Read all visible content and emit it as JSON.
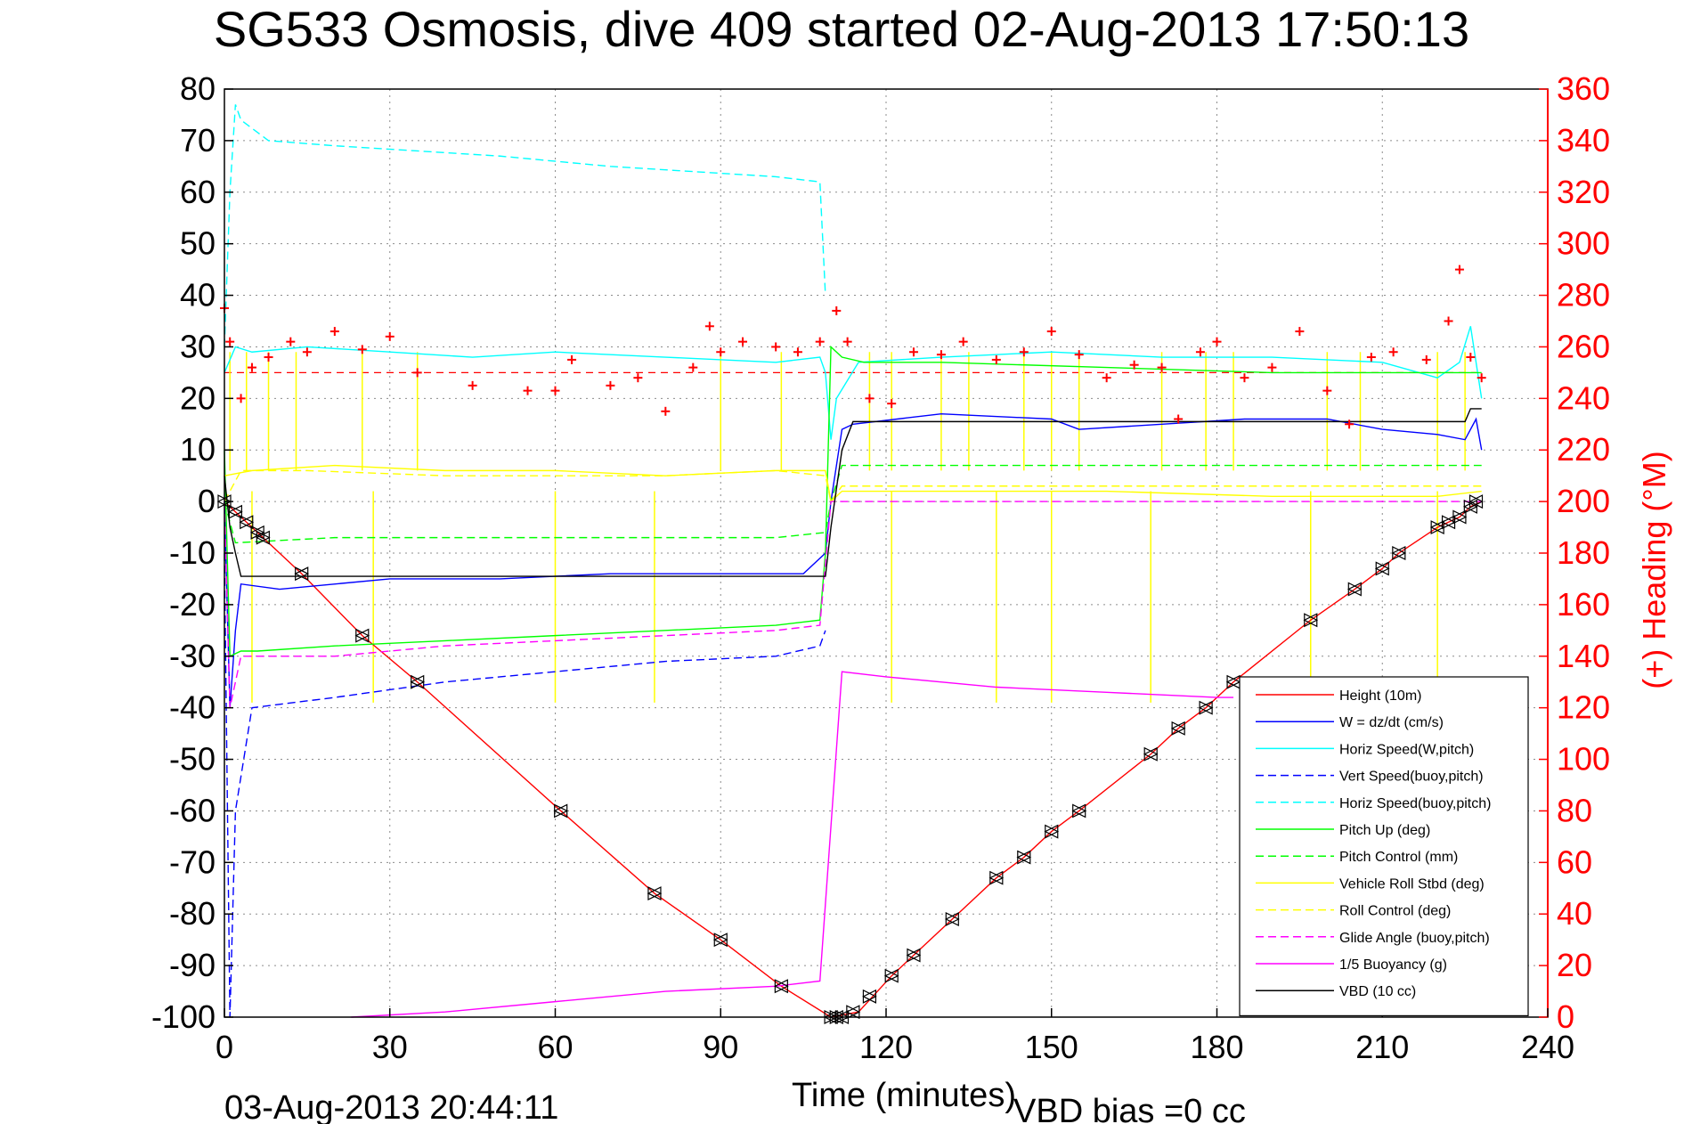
{
  "title": "SG533 Osmosis, dive 409 started 02-Aug-2013 17:50:13",
  "footer": {
    "timestamp": "03-Aug-2013 20:44:11",
    "vbd_bias": "VBD bias =0 cc"
  },
  "colors": {
    "red": "#ff0000",
    "blue": "#0000ff",
    "cyan": "#00ffff",
    "green": "#00ff00",
    "yellow": "#ffff00",
    "magenta": "#ff00ff",
    "black": "#000000"
  },
  "chart_data": {
    "type": "line",
    "title": "SG533 Osmosis, dive 409 started 02-Aug-2013 17:50:13",
    "xlabel": "Time (minutes)",
    "ylabel": "",
    "y2label": "(+) Heading (°M)",
    "xlim": [
      0,
      240
    ],
    "ylim": [
      -100,
      80
    ],
    "y2lim": [
      0,
      360
    ],
    "grid": true,
    "legend_position": "bottom-right",
    "x_ticks": [
      "0",
      "30",
      "60",
      "90",
      "120",
      "150",
      "180",
      "210",
      "240"
    ],
    "y_ticks": [
      "80",
      "70",
      "60",
      "50",
      "40",
      "30",
      "20",
      "10",
      "0",
      "-10",
      "-20",
      "-30",
      "-40",
      "-50",
      "-60",
      "-70",
      "-80",
      "-90",
      "-100"
    ],
    "y2_ticks": [
      "360",
      "340",
      "320",
      "300",
      "280",
      "260",
      "240",
      "220",
      "200",
      "180",
      "160",
      "140",
      "120",
      "100",
      "80",
      "60",
      "40",
      "20",
      "0"
    ],
    "series": [
      {
        "name": "Height (10m)",
        "color": "#ff0000",
        "style": "solid",
        "x": [
          0,
          3,
          7,
          14,
          25,
          35,
          61,
          78,
          90,
          101,
          110,
          115,
          121,
          125,
          132,
          140,
          145,
          150,
          155,
          168,
          173,
          178,
          183,
          197,
          205,
          210,
          213,
          220,
          222,
          224,
          226,
          228
        ],
        "y": [
          0,
          -3,
          -7,
          -14,
          -26,
          -35,
          -60,
          -76,
          -85,
          -94,
          -100,
          -99,
          -92,
          -88,
          -81,
          -73,
          -69,
          -64,
          -60,
          -49,
          -44,
          -40,
          -35,
          -23,
          -17,
          -13,
          -10,
          -5,
          -4,
          -3,
          -1,
          0
        ]
      },
      {
        "name": "W = dz/dt (cm/s)",
        "color": "#0000ff",
        "style": "solid",
        "x": [
          0,
          1,
          2,
          3,
          10,
          30,
          50,
          70,
          90,
          105,
          109,
          110,
          112,
          114,
          130,
          150,
          155,
          170,
          185,
          200,
          210,
          220,
          225,
          227,
          228
        ],
        "y": [
          0,
          -40,
          -25,
          -16,
          -17,
          -15,
          -15,
          -14,
          -14,
          -14,
          -10,
          0,
          14,
          15,
          17,
          16,
          14,
          15,
          16,
          16,
          14,
          13,
          12,
          16,
          10
        ]
      },
      {
        "name": "Horiz Speed(W,pitch)",
        "color": "#00ffff",
        "style": "solid",
        "x": [
          0,
          2,
          5,
          15,
          30,
          45,
          60,
          80,
          100,
          108,
          109,
          110,
          111,
          115,
          130,
          150,
          170,
          190,
          210,
          220,
          224,
          226,
          228
        ],
        "y": [
          25,
          30,
          29,
          30,
          29,
          28,
          29,
          28,
          27,
          28,
          25,
          12,
          20,
          27,
          28,
          29,
          28,
          28,
          27,
          24,
          27,
          34,
          20
        ]
      },
      {
        "name": "Vert Speed(buoy,pitch)",
        "color": "#0000ff",
        "style": "dashed",
        "x": [
          0,
          1,
          2,
          5,
          20,
          40,
          60,
          80,
          100,
          108,
          109
        ],
        "y": [
          -10,
          -100,
          -60,
          -40,
          -38,
          -35,
          -33,
          -31,
          -30,
          -28,
          -25
        ]
      },
      {
        "name": "Horiz Speed(buoy,pitch)",
        "color": "#00ffff",
        "style": "dashed",
        "x": [
          0,
          1,
          2,
          3,
          8,
          20,
          35,
          50,
          70,
          85,
          100,
          108,
          109
        ],
        "y": [
          30,
          60,
          77,
          74,
          70,
          69,
          68,
          67,
          65,
          64,
          63,
          62,
          40
        ]
      },
      {
        "name": "Pitch Up (deg)",
        "color": "#00ff00",
        "style": "solid",
        "x": [
          0,
          1,
          3,
          6,
          20,
          40,
          60,
          80,
          100,
          108,
          109,
          110,
          112,
          116,
          130,
          160,
          190,
          220,
          228
        ],
        "y": [
          10,
          -30,
          -29,
          -29,
          -28,
          -27,
          -26,
          -25,
          -24,
          -23,
          -10,
          30,
          28,
          27,
          27,
          26,
          25,
          25,
          25
        ]
      },
      {
        "name": "Pitch Control (mm)",
        "color": "#00ff00",
        "style": "dashed",
        "x": [
          0,
          2,
          20,
          50,
          80,
          100,
          109,
          110,
          112,
          130,
          160,
          200,
          228
        ],
        "y": [
          0,
          -8,
          -7,
          -7,
          -7,
          -7,
          -6,
          0,
          7,
          7,
          7,
          7,
          7
        ]
      },
      {
        "name": "Vehicle Roll Stbd (deg)",
        "color": "#ffff00",
        "style": "solid",
        "x": [
          0,
          5,
          20,
          40,
          60,
          80,
          100,
          109,
          110,
          112,
          130,
          160,
          190,
          220,
          228
        ],
        "y": [
          5,
          6,
          7,
          6,
          6,
          5,
          6,
          6,
          0,
          2,
          2,
          2,
          1,
          1,
          2
        ]
      },
      {
        "name": "Roll Control (deg)",
        "color": "#ffff00",
        "style": "dashed",
        "x": [
          0,
          3,
          15,
          40,
          60,
          80,
          100,
          109,
          110,
          112,
          130,
          160,
          200,
          228
        ],
        "y": [
          0,
          6,
          6,
          5,
          5,
          5,
          6,
          5,
          0,
          3,
          3,
          3,
          3,
          3
        ]
      },
      {
        "name": "Glide Angle (buoy,pitch)",
        "color": "#ff00ff",
        "style": "dashed",
        "x": [
          0,
          1,
          3,
          20,
          40,
          60,
          80,
          100,
          108,
          110,
          112,
          140,
          170,
          200,
          228
        ],
        "y": [
          0,
          -40,
          -30,
          -30,
          -28,
          -27,
          -26,
          -25,
          -24,
          0,
          0,
          0,
          0,
          0,
          0
        ]
      },
      {
        "name": "1/5 Buoyancy (g)",
        "color": "#ff00ff",
        "style": "solid",
        "x": [
          23,
          40,
          60,
          80,
          100,
          108,
          112,
          120,
          140,
          160,
          180,
          183
        ],
        "y": [
          -100,
          -99,
          -97,
          -95,
          -94,
          -93,
          -33,
          -34,
          -36,
          -37,
          -38,
          -38
        ]
      },
      {
        "name": "VBD (10 cc)",
        "color": "#000000",
        "style": "solid",
        "x": [
          0,
          1,
          2,
          3,
          10,
          50,
          100,
          109,
          110,
          112,
          114,
          150,
          200,
          225,
          226,
          228
        ],
        "y": [
          5,
          -5,
          -10,
          -14.5,
          -14.5,
          -14.5,
          -14.5,
          -14.5,
          -5,
          10,
          15.5,
          15.5,
          15.5,
          15.5,
          18,
          18
        ]
      }
    ],
    "heading_series": {
      "name": "Heading",
      "color": "#ff0000",
      "axis": "right",
      "marker": "+",
      "target": 250,
      "x": [
        0,
        1,
        3,
        5,
        8,
        12,
        15,
        20,
        25,
        30,
        35,
        45,
        55,
        60,
        63,
        70,
        75,
        80,
        85,
        88,
        90,
        94,
        100,
        104,
        108,
        111,
        113,
        117,
        121,
        125,
        130,
        134,
        140,
        145,
        150,
        155,
        160,
        165,
        170,
        173,
        177,
        180,
        185,
        190,
        195,
        200,
        204,
        208,
        212,
        218,
        222,
        224,
        226,
        228
      ],
      "y": [
        275,
        262,
        240,
        252,
        256,
        262,
        258,
        266,
        259,
        264,
        250,
        245,
        243,
        243,
        255,
        245,
        248,
        235,
        252,
        268,
        258,
        262,
        260,
        258,
        262,
        274,
        262,
        240,
        238,
        258,
        257,
        262,
        255,
        258,
        266,
        257,
        248,
        253,
        252,
        232,
        258,
        262,
        248,
        252,
        266,
        243,
        230,
        256,
        258,
        255,
        270,
        290,
        256,
        248
      ]
    },
    "mark_series": {
      "name": "triangle markers",
      "color": "#000000",
      "x": [
        0,
        2,
        4,
        6,
        7,
        14,
        25,
        35,
        61,
        78,
        90,
        101,
        110,
        111,
        112,
        114,
        117,
        121,
        125,
        132,
        140,
        145,
        150,
        155,
        168,
        173,
        178,
        183,
        197,
        205,
        210,
        213,
        220,
        222,
        224,
        226,
        227
      ],
      "y": [
        0,
        -2,
        -4,
        -6,
        -7,
        -14,
        -26,
        -35,
        -60,
        -76,
        -85,
        -94,
        -100,
        -100,
        -100,
        -99,
        -96,
        -92,
        -88,
        -81,
        -73,
        -69,
        -64,
        -60,
        -49,
        -44,
        -40,
        -35,
        -23,
        -17,
        -13,
        -10,
        -5,
        -4,
        -3,
        -1,
        0
      ]
    },
    "spikes": {
      "name": "roll spikes",
      "color": "#ffff00",
      "up": [
        1,
        4,
        8,
        13,
        25,
        35,
        90,
        101,
        117,
        121,
        130,
        135,
        145,
        150,
        155,
        170,
        178,
        183,
        200,
        206,
        220,
        225
      ],
      "down": [
        5,
        27,
        60,
        78,
        121,
        140,
        150,
        168,
        197,
        220
      ]
    }
  }
}
